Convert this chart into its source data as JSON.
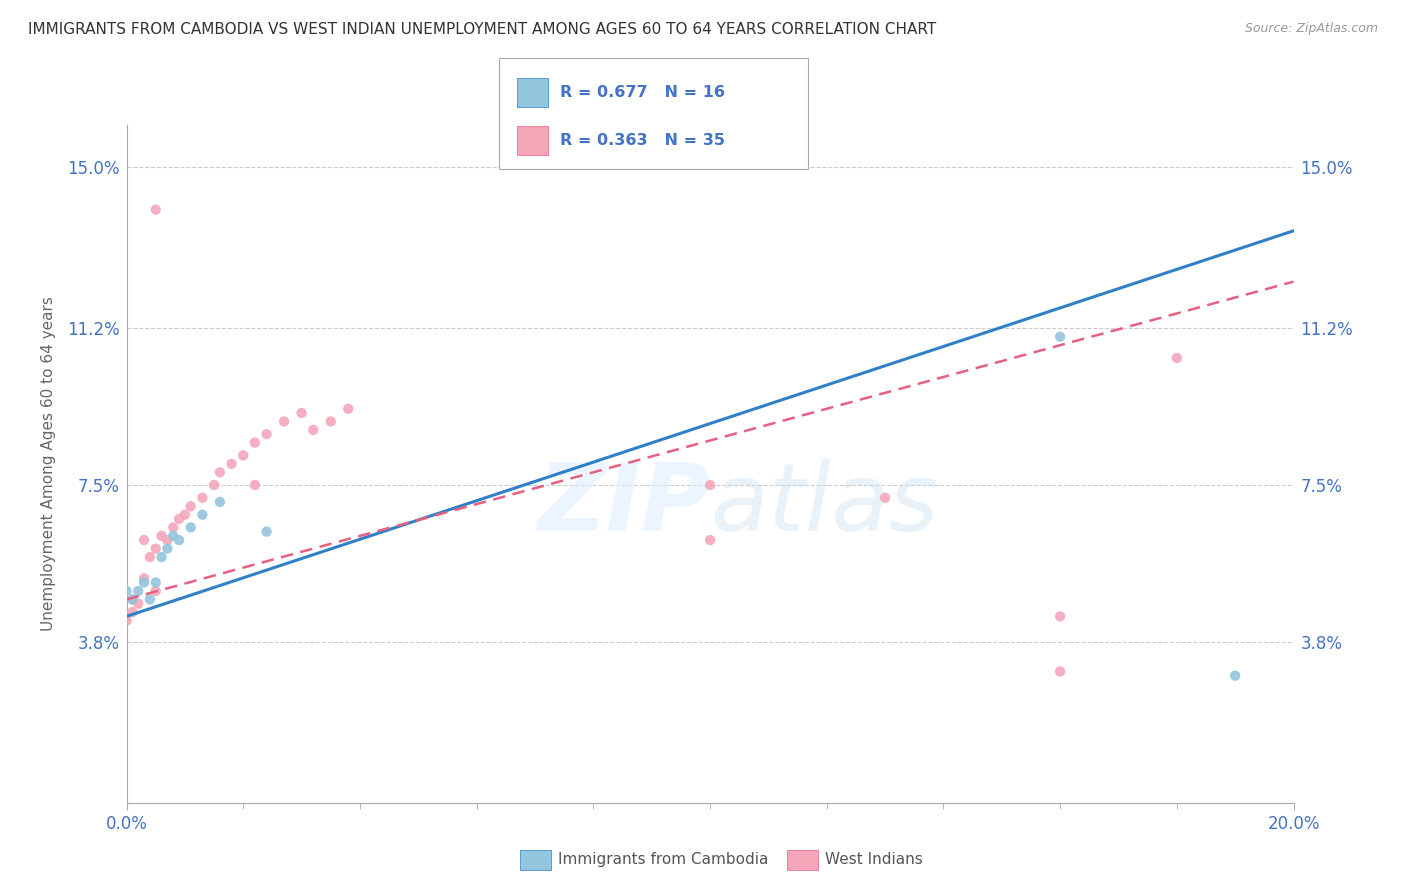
{
  "title": "IMMIGRANTS FROM CAMBODIA VS WEST INDIAN UNEMPLOYMENT AMONG AGES 60 TO 64 YEARS CORRELATION CHART",
  "source": "Source: ZipAtlas.com",
  "ylabel": "Unemployment Among Ages 60 to 64 years",
  "xlim": [
    0.0,
    0.2
  ],
  "ylim": [
    0.0,
    0.16
  ],
  "yticks": [
    0.038,
    0.075,
    0.112,
    0.15
  ],
  "ytick_labels": [
    "3.8%",
    "7.5%",
    "11.2%",
    "15.0%"
  ],
  "xtick_labels_show": [
    "0.0%",
    "20.0%"
  ],
  "xticks_show": [
    0.0,
    0.2
  ],
  "cambodia_color": "#92c5de",
  "west_indian_color": "#f4a7b9",
  "trendline_cambodia_color": "#3080c8",
  "trendline_west_indian_color": "#e86080",
  "R_cambodia": 0.677,
  "N_cambodia": 16,
  "R_west_indian": 0.363,
  "N_west_indian": 35,
  "cambodia_x": [
    0.001,
    0.002,
    0.003,
    0.004,
    0.005,
    0.006,
    0.007,
    0.008,
    0.009,
    0.011,
    0.013,
    0.016,
    0.024,
    0.16,
    0.19,
    0.0
  ],
  "cambodia_y": [
    0.048,
    0.05,
    0.052,
    0.048,
    0.052,
    0.058,
    0.06,
    0.063,
    0.062,
    0.065,
    0.068,
    0.071,
    0.064,
    0.11,
    0.03,
    0.05
  ],
  "west_indian_x": [
    0.0,
    0.001,
    0.001,
    0.002,
    0.003,
    0.003,
    0.004,
    0.005,
    0.005,
    0.006,
    0.007,
    0.008,
    0.009,
    0.01,
    0.011,
    0.013,
    0.015,
    0.016,
    0.018,
    0.02,
    0.022,
    0.024,
    0.027,
    0.03,
    0.032,
    0.035,
    0.038,
    0.1,
    0.13,
    0.16,
    0.18,
    0.005,
    0.022,
    0.1,
    0.16
  ],
  "west_indian_y": [
    0.043,
    0.045,
    0.048,
    0.047,
    0.053,
    0.062,
    0.058,
    0.05,
    0.06,
    0.063,
    0.062,
    0.065,
    0.067,
    0.068,
    0.07,
    0.072,
    0.075,
    0.078,
    0.08,
    0.082,
    0.085,
    0.087,
    0.09,
    0.092,
    0.088,
    0.09,
    0.093,
    0.075,
    0.072,
    0.031,
    0.105,
    0.14,
    0.075,
    0.062,
    0.044
  ],
  "watermark_zip": "ZIP",
  "watermark_atlas": "atlas",
  "background_color": "#ffffff",
  "grid_color": "#cccccc",
  "tick_color": "#4472c4",
  "axis_color": "#aaaaaa",
  "legend_R_color": "#4472c4",
  "legend_border_color": "#aaaaaa"
}
